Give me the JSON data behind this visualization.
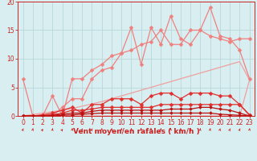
{
  "x": [
    0,
    1,
    2,
    3,
    4,
    5,
    6,
    7,
    8,
    9,
    10,
    11,
    12,
    13,
    14,
    15,
    16,
    17,
    18,
    19,
    20,
    21,
    22,
    23
  ],
  "lines": [
    {
      "name": "line_light_pink_diagonal_straight",
      "color": "#f0a0a0",
      "lw": 0.9,
      "marker": null,
      "y": [
        0,
        0.25,
        0.5,
        0.75,
        1.0,
        1.3,
        1.7,
        2.1,
        2.5,
        3.0,
        3.5,
        4.0,
        4.5,
        5.0,
        5.5,
        6.0,
        6.5,
        7.0,
        7.5,
        8.0,
        8.5,
        9.0,
        9.5,
        6.3
      ]
    },
    {
      "name": "line_light_pink_flat",
      "color": "#f0a0a0",
      "lw": 0.9,
      "marker": null,
      "y": [
        0,
        0,
        0,
        0,
        0,
        0,
        0,
        0,
        0,
        0,
        0,
        0,
        0,
        0,
        0,
        0,
        0,
        0,
        0,
        0,
        0,
        0,
        0,
        6.3
      ]
    },
    {
      "name": "line_pink_marker_upper",
      "color": "#f08080",
      "lw": 0.9,
      "marker": "D",
      "markersize": 2.5,
      "y": [
        6.5,
        0,
        0,
        3.5,
        0,
        6.5,
        6.5,
        8.0,
        9.0,
        10.5,
        11.0,
        15.5,
        9.0,
        15.5,
        12.5,
        17.5,
        13.5,
        12.5,
        15.0,
        19.0,
        14.0,
        13.5,
        11.5,
        6.5
      ]
    },
    {
      "name": "line_pink_marker_lower",
      "color": "#f08080",
      "lw": 0.9,
      "marker": "D",
      "markersize": 2.5,
      "y": [
        0,
        0,
        0,
        0,
        1.5,
        3.0,
        3.0,
        6.5,
        8.0,
        8.5,
        11.0,
        11.5,
        12.5,
        13.0,
        15.0,
        12.5,
        12.5,
        15.0,
        15.0,
        14.0,
        13.5,
        13.0,
        13.5,
        13.5
      ]
    },
    {
      "name": "line_red_upper",
      "color": "#e03030",
      "lw": 0.9,
      "marker": "D",
      "markersize": 2.5,
      "y": [
        0,
        0,
        0.2,
        0.5,
        1.0,
        1.5,
        0.5,
        2.0,
        2.0,
        3.0,
        3.0,
        3.0,
        2.0,
        3.5,
        4.0,
        4.0,
        3.0,
        4.0,
        4.0,
        4.0,
        3.5,
        3.5,
        2.0,
        0.2
      ]
    },
    {
      "name": "line_red_mid",
      "color": "#e03030",
      "lw": 0.9,
      "marker": "D",
      "markersize": 2.5,
      "y": [
        0,
        0,
        0.1,
        0.2,
        0.5,
        1.0,
        1.0,
        1.2,
        1.5,
        1.5,
        1.5,
        1.5,
        1.5,
        1.5,
        2.0,
        2.0,
        2.0,
        2.0,
        2.0,
        2.0,
        2.0,
        2.0,
        2.0,
        0.1
      ]
    },
    {
      "name": "line_dark_red1",
      "color": "#bb1111",
      "lw": 0.9,
      "marker": "D",
      "markersize": 2.0,
      "y": [
        0,
        0,
        0,
        0.1,
        0.3,
        0.5,
        0.5,
        0.8,
        1.0,
        1.0,
        1.0,
        1.0,
        1.0,
        1.0,
        1.0,
        1.2,
        1.2,
        1.2,
        1.5,
        1.5,
        1.2,
        1.0,
        0.5,
        0.0
      ]
    },
    {
      "name": "line_dark_red2",
      "color": "#bb1111",
      "lw": 0.9,
      "marker": "D",
      "markersize": 2.0,
      "y": [
        0,
        0,
        0,
        0.0,
        0.1,
        0.2,
        0.3,
        0.4,
        0.5,
        0.5,
        0.5,
        0.5,
        0.5,
        0.5,
        0.5,
        0.5,
        0.5,
        0.5,
        0.5,
        0.5,
        0.3,
        0.2,
        0.1,
        0.0
      ]
    }
  ],
  "xlabel": "Vent moyen/en rafales ( km/h )",
  "xlim_min": -0.5,
  "xlim_max": 23.5,
  "ylim": [
    0,
    20
  ],
  "yticks": [
    0,
    5,
    10,
    15,
    20
  ],
  "xticks": [
    0,
    1,
    2,
    3,
    4,
    5,
    6,
    7,
    8,
    9,
    10,
    11,
    12,
    13,
    14,
    15,
    16,
    17,
    18,
    19,
    20,
    21,
    22,
    23
  ],
  "bg_color": "#d8eef0",
  "grid_color": "#b8d8da",
  "axis_color": "#cc2222",
  "xlabel_color": "#cc2222",
  "xlabel_fontsize": 6.5,
  "tick_fontsize": 5.5,
  "wind_dirs": [
    225,
    210,
    240,
    210,
    240,
    200,
    225,
    225,
    200,
    200,
    190,
    190,
    180,
    180,
    190,
    180,
    190,
    210,
    210,
    210,
    220,
    230,
    225,
    200
  ]
}
